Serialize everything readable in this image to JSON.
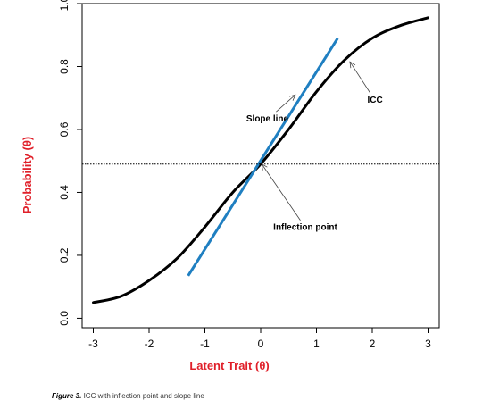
{
  "chart_data": {
    "type": "line",
    "xlabel": "Latent Trait (θ)",
    "ylabel": "Probability (θ)",
    "xlim": [
      -3.2,
      3.2
    ],
    "ylim": [
      -0.03,
      1.0
    ],
    "x_ticks": [
      -3,
      -2,
      -1,
      0,
      1,
      2,
      3
    ],
    "x_tick_labels": [
      "-3",
      "-2",
      "-1",
      "0",
      "1",
      "2",
      "3"
    ],
    "y_ticks": [
      0.0,
      0.2,
      0.4,
      0.6,
      0.8,
      1.0
    ],
    "y_tick_labels": [
      "0.0",
      "0.2",
      "0.4",
      "0.6",
      "0.8",
      "1.0"
    ],
    "grid": false,
    "colors": {
      "icc": "#000000",
      "slope_line": "#1f7fc1",
      "axis_title": "#e0202a"
    },
    "series": [
      {
        "key": "icc",
        "style": "solid-black",
        "x": [
          -3.0,
          -2.5,
          -2.0,
          -1.5,
          -1.0,
          -0.5,
          0.0,
          0.5,
          1.0,
          1.5,
          2.0,
          2.5,
          3.0
        ],
        "y": [
          0.05,
          0.07,
          0.12,
          0.19,
          0.29,
          0.4,
          0.49,
          0.6,
          0.72,
          0.82,
          0.89,
          0.93,
          0.955
        ]
      },
      {
        "key": "slope_line",
        "style": "solid-blue",
        "x": [
          -1.3,
          1.38
        ],
        "y": [
          0.135,
          0.89
        ]
      },
      {
        "key": "reference",
        "style": "dotted-black",
        "x": [
          -3.2,
          3.2
        ],
        "y": [
          0.49,
          0.49
        ]
      }
    ],
    "annotations": [
      {
        "label": "Slope line",
        "text_x": 0.12,
        "text_y": 0.625,
        "arrow_to_x": 0.62,
        "arrow_to_y": 0.71
      },
      {
        "label": "ICC",
        "text_x": 2.05,
        "text_y": 0.685,
        "arrow_to_x": 1.6,
        "arrow_to_y": 0.815
      },
      {
        "label": "Inflection point",
        "text_x": 0.8,
        "text_y": 0.28,
        "arrow_to_x": 0.02,
        "arrow_to_y": 0.49
      }
    ]
  },
  "caption": {
    "label": "Figure 3.",
    "text": "ICC with inflection point and slope line"
  }
}
